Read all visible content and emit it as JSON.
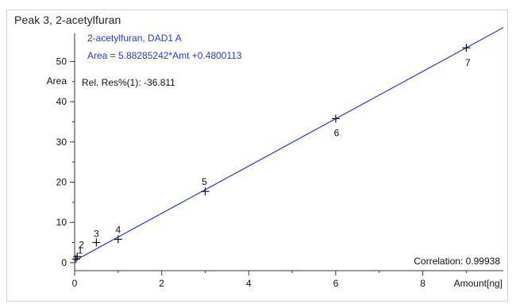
{
  "panel": {
    "title": "Peak 3, 2-acetylfuran"
  },
  "chart_data": {
    "type": "scatter",
    "title": "Peak 3, 2-acetylfuran",
    "fit": {
      "label_line1": "2-acetylfuran, DAD1 A",
      "label_line2": "Area = 5.88285242*Amt +0.4800113",
      "slope": 5.88285242,
      "intercept": 0.4800113
    },
    "annotation": "Rel. Res%(1): -36.811",
    "correlation_text": "Correlation: 0.99938",
    "xlabel": "Amount[ng]",
    "ylabel": "Area",
    "xlim": [
      0,
      9.85
    ],
    "ylim": [
      -2,
      57
    ],
    "x_ticks": [
      0,
      2,
      4,
      6,
      8
    ],
    "y_ticks": [
      0,
      10,
      20,
      30,
      40,
      50
    ],
    "points": [
      {
        "label": "1",
        "x": 0.03,
        "y": 0.88
      },
      {
        "label": "2",
        "x": 0.06,
        "y": 1.5
      },
      {
        "label": "3",
        "x": 0.5,
        "y": 5.0
      },
      {
        "label": "4",
        "x": 1.0,
        "y": 5.8
      },
      {
        "label": "5",
        "x": 3.0,
        "y": 17.7
      },
      {
        "label": "6",
        "x": 6.0,
        "y": 35.8
      },
      {
        "label": "7",
        "x": 9.0,
        "y": 53.4
      }
    ],
    "line_color": "#1f3fd1",
    "text_color": "#111111"
  }
}
